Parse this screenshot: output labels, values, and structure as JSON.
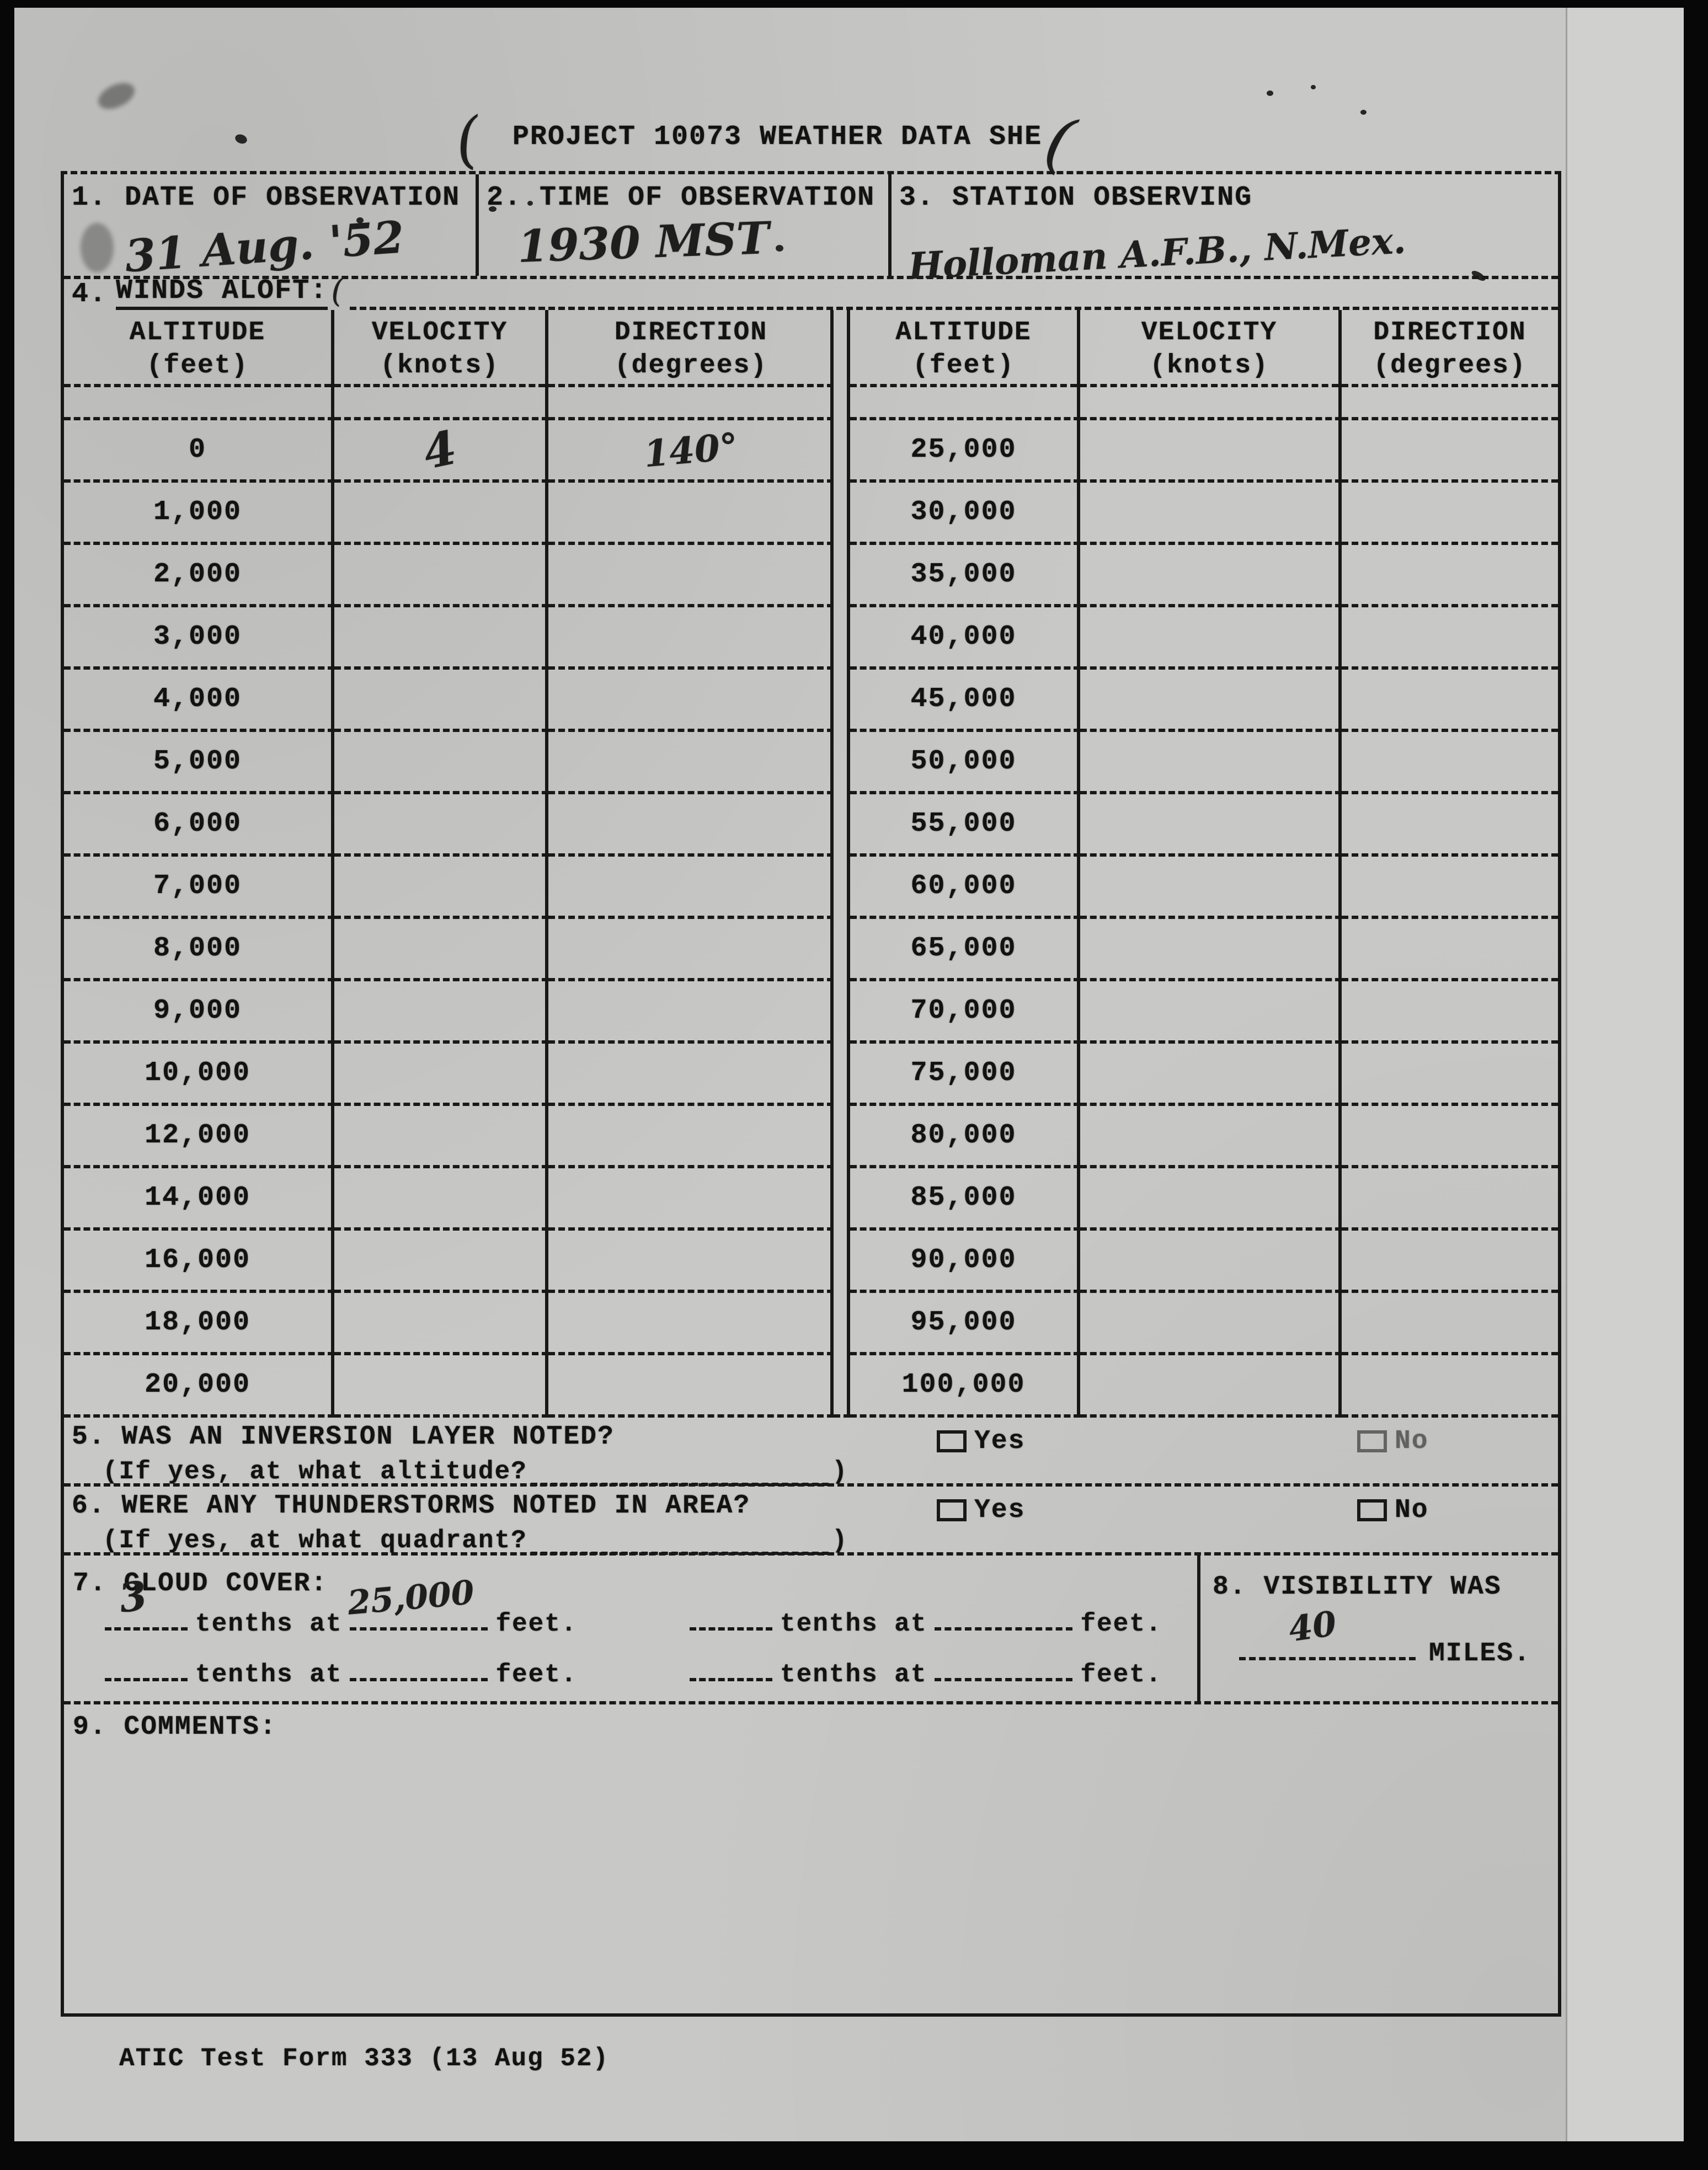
{
  "title": {
    "mark_left": "(",
    "text": "PROJECT 10073 WEATHER DATA SHE",
    "mark_right": "("
  },
  "fields": [
    {
      "label": "1. DATE OF OBSERVATION",
      "value": "31 Aug. '52"
    },
    {
      "label": "2. TIME OF OBSERVATION",
      "value": "1930 MST"
    },
    {
      "label": "3. STATION OBSERVING",
      "value": "Holloman A.F.B., N.Mex."
    }
  ],
  "winds_aloft": {
    "section_number": "4.",
    "section_label": "WINDS ALOFT:",
    "section_mark": "(",
    "columns": [
      "ALTITUDE",
      "VELOCITY",
      "DIRECTION"
    ],
    "units": [
      "(feet)",
      "(knots)",
      "(degrees)"
    ],
    "left_rows": [
      {
        "altitude": "0",
        "velocity": "4",
        "direction": "140°"
      },
      {
        "altitude": "1,000",
        "velocity": "",
        "direction": ""
      },
      {
        "altitude": "2,000",
        "velocity": "",
        "direction": ""
      },
      {
        "altitude": "3,000",
        "velocity": "",
        "direction": ""
      },
      {
        "altitude": "4,000",
        "velocity": "",
        "direction": ""
      },
      {
        "altitude": "5,000",
        "velocity": "",
        "direction": ""
      },
      {
        "altitude": "6,000",
        "velocity": "",
        "direction": ""
      },
      {
        "altitude": "7,000",
        "velocity": "",
        "direction": ""
      },
      {
        "altitude": "8,000",
        "velocity": "",
        "direction": ""
      },
      {
        "altitude": "9,000",
        "velocity": "",
        "direction": ""
      },
      {
        "altitude": "10,000",
        "velocity": "",
        "direction": ""
      },
      {
        "altitude": "12,000",
        "velocity": "",
        "direction": ""
      },
      {
        "altitude": "14,000",
        "velocity": "",
        "direction": ""
      },
      {
        "altitude": "16,000",
        "velocity": "",
        "direction": ""
      },
      {
        "altitude": "18,000",
        "velocity": "",
        "direction": ""
      },
      {
        "altitude": "20,000",
        "velocity": "",
        "direction": ""
      }
    ],
    "right_rows": [
      {
        "altitude": "25,000",
        "velocity": "",
        "direction": ""
      },
      {
        "altitude": "30,000",
        "velocity": "",
        "direction": ""
      },
      {
        "altitude": "35,000",
        "velocity": "",
        "direction": ""
      },
      {
        "altitude": "40,000",
        "velocity": "",
        "direction": ""
      },
      {
        "altitude": "45,000",
        "velocity": "",
        "direction": ""
      },
      {
        "altitude": "50,000",
        "velocity": "",
        "direction": ""
      },
      {
        "altitude": "55,000",
        "velocity": "",
        "direction": ""
      },
      {
        "altitude": "60,000",
        "velocity": "",
        "direction": ""
      },
      {
        "altitude": "65,000",
        "velocity": "",
        "direction": ""
      },
      {
        "altitude": "70,000",
        "velocity": "",
        "direction": ""
      },
      {
        "altitude": "75,000",
        "velocity": "",
        "direction": ""
      },
      {
        "altitude": "80,000",
        "velocity": "",
        "direction": ""
      },
      {
        "altitude": "85,000",
        "velocity": "",
        "direction": ""
      },
      {
        "altitude": "90,000",
        "velocity": "",
        "direction": ""
      },
      {
        "altitude": "95,000",
        "velocity": "",
        "direction": ""
      },
      {
        "altitude": "100,000",
        "velocity": "",
        "direction": ""
      }
    ]
  },
  "questions": [
    {
      "number": "5.",
      "text": "WAS AN INVERSION LAYER NOTED?",
      "sub": "(If yes, at what altitude?",
      "sub_close": ")",
      "yes": "Yes",
      "no": "No",
      "yes_checked": false,
      "no_checked": false
    },
    {
      "number": "6.",
      "text": "WERE ANY THUNDERSTORMS NOTED IN AREA?",
      "sub": "(If yes, at what quadrant?",
      "sub_close": ")",
      "yes": "Yes",
      "no": "No",
      "yes_checked": false,
      "no_checked": false
    }
  ],
  "cloud_cover": {
    "label": "7. CLOUD COVER:",
    "tenths_label": "tenths at",
    "feet_label": "feet.",
    "entries": [
      {
        "tenths": "3",
        "feet": "25,000"
      },
      {
        "tenths": "",
        "feet": ""
      },
      {
        "tenths": "",
        "feet": ""
      },
      {
        "tenths": "",
        "feet": ""
      }
    ]
  },
  "visibility": {
    "label": "8. VISIBILITY WAS",
    "value": "40",
    "unit": "MILES."
  },
  "comments_label": "9. COMMENTS:",
  "footer": "ATIC Test Form 333 (13 Aug 52)"
}
